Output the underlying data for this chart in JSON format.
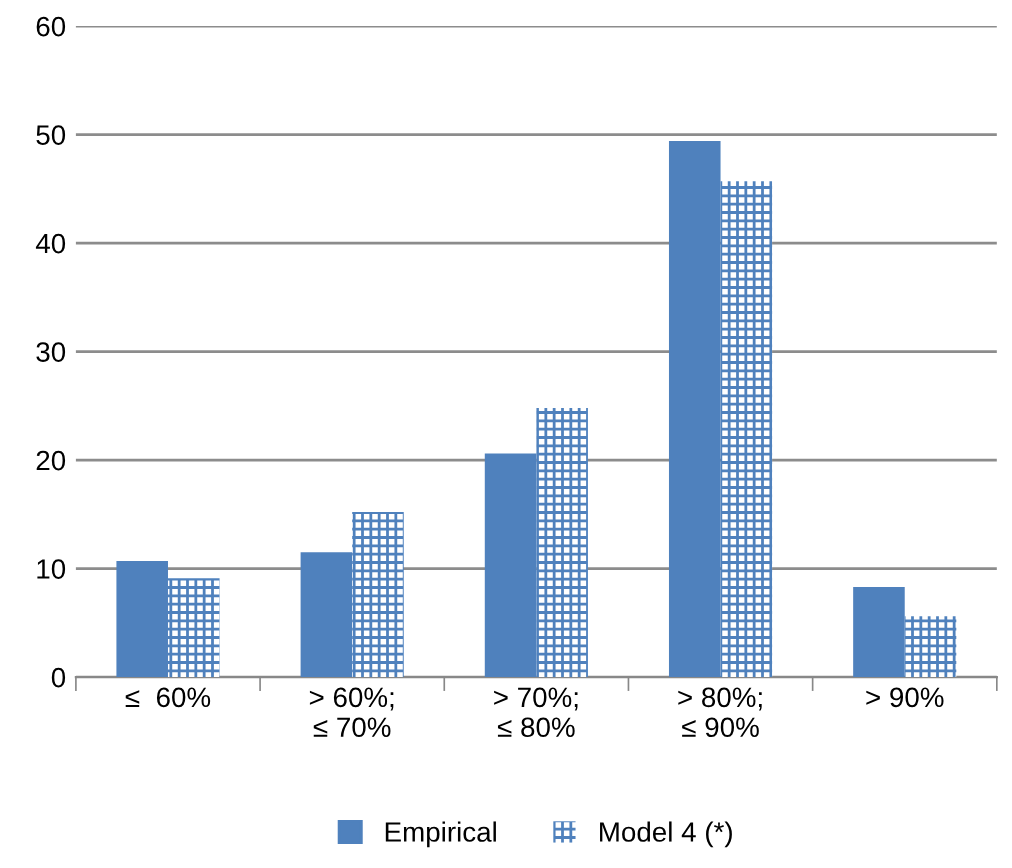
{
  "chart_data": {
    "type": "bar",
    "categories": [
      "≤  60%",
      "> 60%; ≤ 70%",
      "> 70%; ≤ 80%",
      "> 80%; ≤ 90%",
      "> 90%"
    ],
    "series": [
      {
        "name": "Empirical",
        "color": "#4f81bd",
        "values": [
          10.7,
          11.5,
          20.6,
          49.4,
          8.3
        ]
      },
      {
        "name": "Model 4 (*)",
        "color": "#4f81bd",
        "values": [
          9.1,
          15.2,
          24.8,
          45.7,
          5.6
        ]
      }
    ],
    "ylim": [
      0,
      60
    ],
    "yticks": [
      0,
      10,
      20,
      30,
      40,
      50,
      60
    ],
    "grid": "y",
    "legend": "bottom"
  }
}
